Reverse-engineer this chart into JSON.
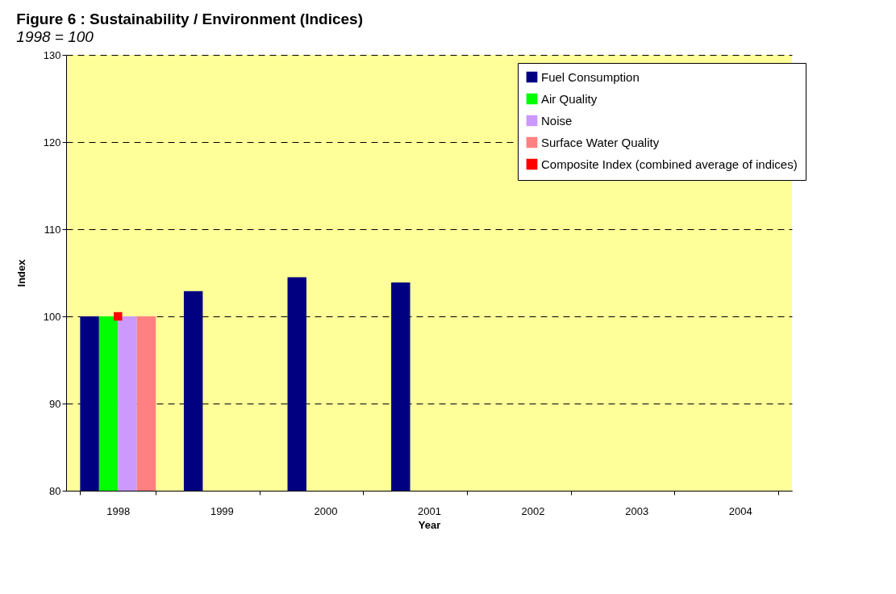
{
  "chart_data": {
    "type": "bar",
    "title": "Figure 6 : Sustainability / Environment (Indices)",
    "subtitle": "1998 = 100",
    "xlabel": "Year",
    "ylabel": "Index",
    "categories": [
      "1998",
      "1999",
      "2000",
      "2001",
      "2002",
      "2003",
      "2004"
    ],
    "series": [
      {
        "name": "Fuel Consumption",
        "color": "#000080",
        "values": [
          100,
          102.9,
          104.5,
          103.9,
          null,
          null,
          null
        ]
      },
      {
        "name": "Air Quality",
        "color": "#00ff00",
        "values": [
          100,
          null,
          null,
          null,
          null,
          null,
          null
        ]
      },
      {
        "name": "Noise",
        "color": "#cc99ff",
        "values": [
          100,
          null,
          null,
          null,
          null,
          null,
          null
        ]
      },
      {
        "name": "Surface Water Quality",
        "color": "#ff8080",
        "values": [
          100,
          null,
          null,
          null,
          null,
          null,
          null
        ]
      },
      {
        "name": "Composite Index (combined average of indices)",
        "type": "line",
        "color": "#ff0000",
        "values": [
          100,
          null,
          null,
          null,
          null,
          null,
          null
        ]
      }
    ],
    "ylim": [
      80,
      130
    ],
    "yticks": [
      80,
      90,
      100,
      110,
      120,
      130
    ],
    "grid": "y",
    "legend": "top right",
    "marker": "square"
  }
}
